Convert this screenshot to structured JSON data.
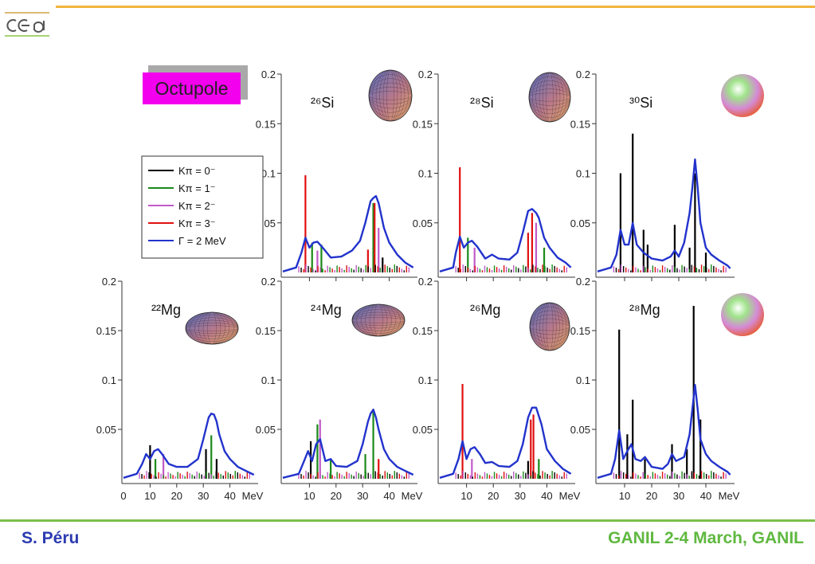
{
  "header": {
    "logo_text": "cea"
  },
  "footer": {
    "author": "S. Péru",
    "conference": "GANIL 2-4 March, GANIL"
  },
  "colors": {
    "accent_top": "#f0b43c",
    "accent_footer": "#7cc04a",
    "author": "#2c3bb0",
    "conference": "#5fb840",
    "K0": "#000000",
    "K1": "#1a8a1a",
    "K2": "#c05ac8",
    "K3": "#e01010",
    "envelope": "#2233cc",
    "label_bg": "#f300ee"
  },
  "mode_label": "Octupole",
  "legend": [
    "Kπ = 0⁻",
    "Kπ = 1⁻",
    "Kπ = 2⁻",
    "Kπ = 3⁻",
    "Γ = 2 MeV"
  ],
  "chart_data": [
    {
      "type": "line",
      "nucleus": "²⁶Si",
      "shape_icon": "prolate-spheroid-icon",
      "xlim": [
        0,
        50
      ],
      "ylim": [
        0,
        0.2
      ],
      "yticks": [
        "0.2",
        "0.15",
        "0.1",
        "0.05"
      ],
      "xticks": [],
      "envelope": {
        "name": "Γ = 2 MeV",
        "x": [
          0,
          5,
          7,
          8.5,
          10,
          11.5,
          13,
          15,
          18,
          22,
          26,
          29,
          31,
          33,
          34,
          35,
          36,
          38,
          40,
          43,
          46,
          49
        ],
        "y": [
          0.001,
          0.005,
          0.02,
          0.035,
          0.025,
          0.03,
          0.031,
          0.025,
          0.015,
          0.016,
          0.022,
          0.032,
          0.05,
          0.072,
          0.075,
          0.077,
          0.07,
          0.045,
          0.03,
          0.018,
          0.01,
          0.005
        ]
      },
      "peaks": [
        {
          "k": 3,
          "x": 8.5,
          "y": 0.098
        },
        {
          "k": 1,
          "x": 11,
          "y": 0.03
        },
        {
          "k": 2,
          "x": 13,
          "y": 0.022
        },
        {
          "k": 1,
          "x": 14.5,
          "y": 0.028
        },
        {
          "k": 3,
          "x": 32,
          "y": 0.023
        },
        {
          "k": 1,
          "x": 34,
          "y": 0.07
        },
        {
          "k": 3,
          "x": 34.5,
          "y": 0.07
        },
        {
          "k": 2,
          "x": 36,
          "y": 0.045
        },
        {
          "k": 0,
          "x": 37.5,
          "y": 0.015
        }
      ]
    },
    {
      "type": "line",
      "nucleus": "²⁸Si",
      "shape_icon": "prolate-spheroid-icon",
      "xlim": [
        0,
        50
      ],
      "ylim": [
        0,
        0.2
      ],
      "yticks": [
        "0.2",
        "0.15",
        "0.1",
        "0.05"
      ],
      "xticks": [],
      "envelope": {
        "name": "Γ = 2 MeV",
        "x": [
          0,
          5,
          6,
          7.5,
          9,
          10.5,
          12,
          14,
          17,
          19.5,
          22,
          26,
          29,
          31,
          33,
          34.5,
          36,
          37,
          39,
          41,
          44,
          47,
          49
        ],
        "y": [
          0.001,
          0.005,
          0.02,
          0.036,
          0.025,
          0.03,
          0.032,
          0.026,
          0.014,
          0.018,
          0.014,
          0.013,
          0.02,
          0.04,
          0.062,
          0.064,
          0.06,
          0.055,
          0.035,
          0.025,
          0.015,
          0.01,
          0.005
        ]
      },
      "peaks": [
        {
          "k": 3,
          "x": 7.5,
          "y": 0.106
        },
        {
          "k": 1,
          "x": 10.5,
          "y": 0.035
        },
        {
          "k": 2,
          "x": 13,
          "y": 0.025
        },
        {
          "k": 3,
          "x": 33,
          "y": 0.04
        },
        {
          "k": 3,
          "x": 34.5,
          "y": 0.06
        },
        {
          "k": 2,
          "x": 36,
          "y": 0.05
        },
        {
          "k": 1,
          "x": 39,
          "y": 0.025
        }
      ]
    },
    {
      "type": "line",
      "nucleus": "³⁰Si",
      "shape_icon": "sphere-icon",
      "xlim": [
        0,
        50
      ],
      "ylim": [
        0,
        0.2
      ],
      "yticks": [
        "0.2",
        "0.15",
        "0.1",
        "0.05"
      ],
      "xticks": [],
      "envelope": {
        "name": "Γ = 2 MeV",
        "x": [
          0,
          5,
          7,
          8.5,
          10,
          11.5,
          13,
          14.5,
          17,
          20,
          24,
          27,
          28.5,
          30,
          32,
          34,
          35,
          36,
          37,
          38,
          40,
          42,
          45,
          48,
          49
        ],
        "y": [
          0.001,
          0.005,
          0.018,
          0.043,
          0.028,
          0.028,
          0.05,
          0.028,
          0.02,
          0.014,
          0.012,
          0.016,
          0.022,
          0.016,
          0.03,
          0.06,
          0.085,
          0.114,
          0.085,
          0.05,
          0.025,
          0.018,
          0.012,
          0.007,
          0.004
        ]
      },
      "peaks": [
        {
          "k": 0,
          "x": 8.5,
          "y": 0.1
        },
        {
          "k": 0,
          "x": 13,
          "y": 0.14
        },
        {
          "k": 0,
          "x": 17,
          "y": 0.043
        },
        {
          "k": 0,
          "x": 18.5,
          "y": 0.028
        },
        {
          "k": 0,
          "x": 28.5,
          "y": 0.048
        },
        {
          "k": 0,
          "x": 34,
          "y": 0.025
        },
        {
          "k": 0,
          "x": 36,
          "y": 0.1
        },
        {
          "k": 0,
          "x": 40,
          "y": 0.02
        }
      ]
    },
    {
      "type": "line",
      "nucleus": "²²Mg",
      "shape_icon": "oblate-spheroid-icon",
      "xlim": [
        0,
        50
      ],
      "ylim": [
        0,
        0.2
      ],
      "yticks": [
        "0.2",
        "0.15",
        "0.1",
        "0.05"
      ],
      "xticks": [
        "0",
        "10",
        "20",
        "30",
        "40",
        "MeV"
      ],
      "envelope": {
        "name": "Γ = 2 MeV",
        "x": [
          0,
          5,
          7,
          8.5,
          10,
          11.5,
          13,
          14.5,
          17,
          20,
          24,
          28,
          30,
          32,
          33,
          34,
          35,
          36,
          38,
          40,
          43,
          46,
          49
        ],
        "y": [
          0.001,
          0.005,
          0.015,
          0.025,
          0.02,
          0.028,
          0.03,
          0.025,
          0.015,
          0.012,
          0.012,
          0.02,
          0.04,
          0.062,
          0.066,
          0.065,
          0.058,
          0.045,
          0.028,
          0.02,
          0.012,
          0.008,
          0.004
        ]
      },
      "peaks": [
        {
          "k": 0,
          "x": 10,
          "y": 0.034
        },
        {
          "k": 1,
          "x": 12,
          "y": 0.02
        },
        {
          "k": 2,
          "x": 15,
          "y": 0.025
        },
        {
          "k": 0,
          "x": 31,
          "y": 0.03
        },
        {
          "k": 1,
          "x": 33,
          "y": 0.044
        },
        {
          "k": 0,
          "x": 35,
          "y": 0.02
        }
      ]
    },
    {
      "type": "line",
      "nucleus": "²⁴Mg",
      "shape_icon": "oblate-spheroid-icon",
      "xlim": [
        0,
        50
      ],
      "ylim": [
        0,
        0.2
      ],
      "yticks": [
        "0.2",
        "0.15",
        "0.1",
        "0.05"
      ],
      "xticks": [
        "10",
        "20",
        "30",
        "40",
        "MeV"
      ],
      "envelope": {
        "name": "Γ = 2 MeV",
        "x": [
          0,
          6,
          8,
          9.5,
          11,
          12.5,
          14,
          16,
          18,
          20,
          24,
          28,
          30,
          32,
          33,
          34,
          35,
          36,
          38,
          40,
          43,
          46,
          49
        ],
        "y": [
          0.001,
          0.005,
          0.018,
          0.028,
          0.018,
          0.035,
          0.04,
          0.018,
          0.02,
          0.013,
          0.012,
          0.018,
          0.035,
          0.058,
          0.066,
          0.07,
          0.062,
          0.05,
          0.03,
          0.02,
          0.012,
          0.008,
          0.004
        ]
      },
      "peaks": [
        {
          "k": 0,
          "x": 10.5,
          "y": 0.038
        },
        {
          "k": 1,
          "x": 13,
          "y": 0.055
        },
        {
          "k": 2,
          "x": 14,
          "y": 0.06
        },
        {
          "k": 1,
          "x": 18,
          "y": 0.02
        },
        {
          "k": 1,
          "x": 31,
          "y": 0.025
        },
        {
          "k": 1,
          "x": 34,
          "y": 0.07
        },
        {
          "k": 3,
          "x": 36,
          "y": 0.02
        }
      ]
    },
    {
      "type": "line",
      "nucleus": "²⁶Mg",
      "shape_icon": "prolate-spheroid-icon",
      "xlim": [
        0,
        50
      ],
      "ylim": [
        0,
        0.2
      ],
      "yticks": [
        "0.2",
        "0.15",
        "0.1",
        "0.05"
      ],
      "xticks": [
        "10",
        "20",
        "30",
        "40",
        "MeV"
      ],
      "envelope": {
        "name": "Γ = 2 MeV",
        "x": [
          0,
          5,
          7,
          8.5,
          10,
          11.5,
          13,
          15,
          17,
          19.5,
          22,
          26,
          29,
          31,
          33,
          34.5,
          36,
          38,
          40,
          43,
          46,
          49
        ],
        "y": [
          0.001,
          0.005,
          0.02,
          0.038,
          0.02,
          0.03,
          0.032,
          0.025,
          0.016,
          0.017,
          0.013,
          0.012,
          0.018,
          0.035,
          0.062,
          0.072,
          0.072,
          0.055,
          0.03,
          0.018,
          0.01,
          0.005
        ]
      },
      "peaks": [
        {
          "k": 3,
          "x": 8.5,
          "y": 0.096
        },
        {
          "k": 2,
          "x": 12,
          "y": 0.02
        },
        {
          "k": 0,
          "x": 33,
          "y": 0.018
        },
        {
          "k": 3,
          "x": 34,
          "y": 0.06
        },
        {
          "k": 3,
          "x": 35,
          "y": 0.065
        },
        {
          "k": 1,
          "x": 37,
          "y": 0.02
        }
      ]
    },
    {
      "type": "line",
      "nucleus": "²⁸Mg",
      "shape_icon": "sphere-icon",
      "xlim": [
        0,
        50
      ],
      "ylim": [
        0,
        0.2
      ],
      "yticks": [
        "0.2",
        "0.15",
        "0.1",
        "0.05"
      ],
      "xticks": [
        "10",
        "20",
        "30",
        "40",
        "MeV"
      ],
      "envelope": {
        "name": "Γ = 2 MeV",
        "x": [
          0,
          5,
          6.5,
          8,
          9.5,
          11,
          12.5,
          14,
          16,
          17.5,
          20,
          24,
          26,
          27.5,
          29,
          32,
          34,
          35,
          36,
          37,
          38,
          40,
          42,
          45,
          48,
          49
        ],
        "y": [
          0.001,
          0.005,
          0.02,
          0.049,
          0.02,
          0.028,
          0.035,
          0.02,
          0.018,
          0.022,
          0.012,
          0.01,
          0.015,
          0.025,
          0.018,
          0.022,
          0.045,
          0.07,
          0.095,
          0.07,
          0.04,
          0.025,
          0.018,
          0.012,
          0.007,
          0.004
        ]
      },
      "peaks": [
        {
          "k": 0,
          "x": 8,
          "y": 0.151
        },
        {
          "k": 0,
          "x": 11,
          "y": 0.045
        },
        {
          "k": 0,
          "x": 13,
          "y": 0.08
        },
        {
          "k": 0,
          "x": 17.5,
          "y": 0.02
        },
        {
          "k": 0,
          "x": 27.5,
          "y": 0.035
        },
        {
          "k": 0,
          "x": 33,
          "y": 0.03
        },
        {
          "k": 0,
          "x": 35.5,
          "y": 0.175
        },
        {
          "k": 0,
          "x": 38,
          "y": 0.06
        }
      ]
    }
  ]
}
